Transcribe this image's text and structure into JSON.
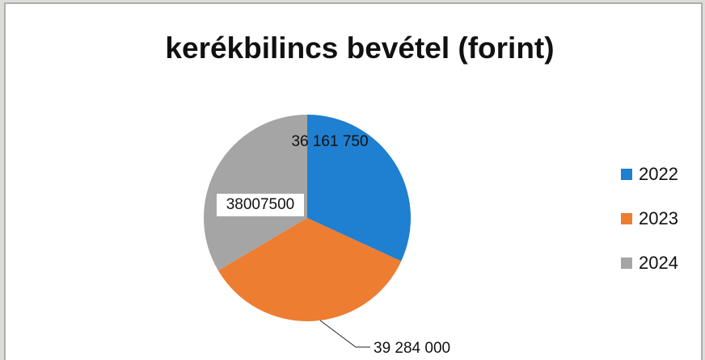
{
  "chart_data": {
    "type": "pie",
    "title": "kerékbilincs bevétel (forint)",
    "categories": [
      "2022",
      "2023",
      "2024"
    ],
    "values": [
      36161750,
      39284000,
      38007500
    ],
    "value_labels": [
      "36 161 750",
      "39 284 000",
      "38007500"
    ],
    "colors": [
      "#1f7fd0",
      "#ed7d31",
      "#a5a5a5"
    ],
    "legend": "right"
  }
}
